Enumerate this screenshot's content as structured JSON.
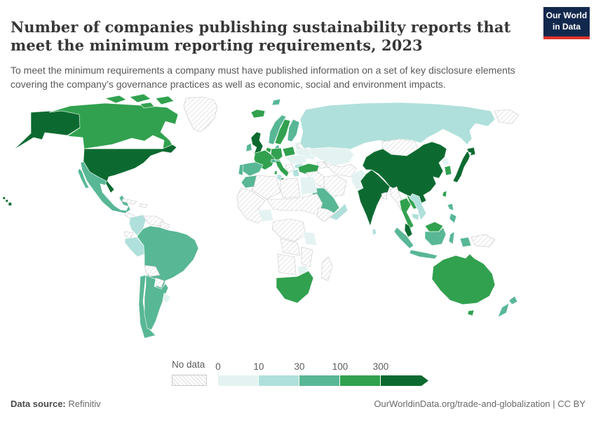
{
  "header": {
    "title": "Number of companies publishing sustainability reports that meet the minimum reporting requirements, 2023",
    "subtitle": "To meet the minimum requirements a company must have published information on a set of key disclosure elements covering the company’s governance practices as well as economic, social and environment impacts.",
    "logo_line1": "Our World",
    "logo_line2": "in Data",
    "logo_bg": "#12294d",
    "logo_red": "#e2342b"
  },
  "legend": {
    "no_data_label": "No data",
    "bins": [
      {
        "label": "0",
        "bin": "b0"
      },
      {
        "label": "10",
        "bin": "b1"
      },
      {
        "label": "30",
        "bin": "b2"
      },
      {
        "label": "100",
        "bin": "b3"
      },
      {
        "label": "300",
        "bin": "b4"
      }
    ]
  },
  "footer": {
    "source_label": "Data source:",
    "source_value": " Refinitiv",
    "url": "OurWorldinData.org/trade-and-globalization",
    "separator": " | ",
    "license": "CC BY"
  },
  "map": {
    "bin_colors": {
      "b0": "#e4f3f1",
      "b1": "#b0e0db",
      "b2": "#58b795",
      "b3": "#31a14f",
      "b4": "#0c6a30"
    },
    "bin_ranges": {
      "b0": "0-10",
      "b1": "10-30",
      "b2": "30-100",
      "b3": "100-300",
      "b4": "300+",
      "nodata": "No data"
    },
    "countries": {
      "usa": {
        "label": "United States",
        "bin": "b4"
      },
      "canada": {
        "label": "Canada",
        "bin": "b3"
      },
      "greenland": {
        "label": "Greenland",
        "bin": "nodata"
      },
      "mexico": {
        "label": "Mexico",
        "bin": "b2"
      },
      "central_america": {
        "label": "Central America",
        "bin": "nodata"
      },
      "cuba": {
        "label": "Cuba",
        "bin": "nodata"
      },
      "hispaniola": {
        "label": "Hispaniola",
        "bin": "nodata"
      },
      "colombia": {
        "label": "Colombia",
        "bin": "b1"
      },
      "venezuela": {
        "label": "Venezuela",
        "bin": "nodata"
      },
      "guyanas": {
        "label": "Guyanas",
        "bin": "nodata"
      },
      "ecuador": {
        "label": "Ecuador",
        "bin": "nodata"
      },
      "peru": {
        "label": "Peru",
        "bin": "b1"
      },
      "brazil": {
        "label": "Brazil",
        "bin": "b2"
      },
      "bolivia": {
        "label": "Bolivia",
        "bin": "nodata"
      },
      "paraguay": {
        "label": "Paraguay",
        "bin": "nodata"
      },
      "chile": {
        "label": "Chile",
        "bin": "b2"
      },
      "argentina": {
        "label": "Argentina",
        "bin": "b2"
      },
      "uruguay": {
        "label": "Uruguay",
        "bin": "b0"
      },
      "iceland": {
        "label": "Iceland",
        "bin": "b3"
      },
      "uk": {
        "label": "United Kingdom",
        "bin": "b4"
      },
      "ireland": {
        "label": "Ireland",
        "bin": "b2"
      },
      "norway": {
        "label": "Norway",
        "bin": "b2"
      },
      "sweden": {
        "label": "Sweden",
        "bin": "b3"
      },
      "finland": {
        "label": "Finland",
        "bin": "b2"
      },
      "denmark": {
        "label": "Denmark",
        "bin": "b2"
      },
      "baltics": {
        "label": "Baltic states",
        "bin": "b0"
      },
      "poland": {
        "label": "Poland",
        "bin": "b3"
      },
      "germany": {
        "label": "Germany",
        "bin": "b3"
      },
      "benelux": {
        "label": "Benelux",
        "bin": "b3"
      },
      "france": {
        "label": "France",
        "bin": "b3"
      },
      "spain": {
        "label": "Spain",
        "bin": "b2"
      },
      "portugal": {
        "label": "Portugal",
        "bin": "b2"
      },
      "italy": {
        "label": "Italy",
        "bin": "b3"
      },
      "swiss_austria": {
        "label": "Switzerland and Austria",
        "bin": "b2"
      },
      "east_europe": {
        "label": "Eastern Europe",
        "bin": "b0"
      },
      "ukraine": {
        "label": "Ukraine",
        "bin": "b0"
      },
      "belarus": {
        "label": "Belarus",
        "bin": "nodata"
      },
      "balkans": {
        "label": "Balkans",
        "bin": "nodata"
      },
      "greece": {
        "label": "Greece",
        "bin": "b1"
      },
      "bulgaria": {
        "label": "Bulgaria",
        "bin": "b1"
      },
      "turkey": {
        "label": "Turkey",
        "bin": "b3"
      },
      "svalbard": {
        "label": "Svalbard",
        "bin": "b2"
      },
      "russia": {
        "label": "Russia",
        "bin": "b1"
      },
      "chukotka": {
        "label": "Chukotka",
        "bin": "nodata"
      },
      "kazakhstan": {
        "label": "Kazakhstan",
        "bin": "b0"
      },
      "central_asia": {
        "label": "Central Asia",
        "bin": "nodata"
      },
      "mongolia": {
        "label": "Mongolia",
        "bin": "nodata"
      },
      "caucasus": {
        "label": "Caucasus",
        "bin": "nodata"
      },
      "china": {
        "label": "China",
        "bin": "b4"
      },
      "north_korea": {
        "label": "North Korea",
        "bin": "b0"
      },
      "south_korea": {
        "label": "South Korea",
        "bin": "b3"
      },
      "japan": {
        "label": "Japan",
        "bin": "b4"
      },
      "taiwan": {
        "label": "Taiwan",
        "bin": "b3"
      },
      "philippines": {
        "label": "Philippines",
        "bin": "b2"
      },
      "pakistan": {
        "label": "Pakistan",
        "bin": "b0"
      },
      "india": {
        "label": "India",
        "bin": "b4"
      },
      "sri_lanka": {
        "label": "Sri Lanka",
        "bin": "b1"
      },
      "bangladesh": {
        "label": "Bangladesh",
        "bin": "nodata"
      },
      "myanmar": {
        "label": "Myanmar",
        "bin": "nodata"
      },
      "thailand": {
        "label": "Thailand",
        "bin": "b3"
      },
      "laos": {
        "label": "Laos",
        "bin": "b3"
      },
      "vietnam": {
        "label": "Vietnam",
        "bin": "b1"
      },
      "cambodia": {
        "label": "Cambodia",
        "bin": "b1"
      },
      "malaysia": {
        "label": "Malaysia",
        "bin": "b4"
      },
      "malaysia_borneo": {
        "label": "Malaysia (Borneo)",
        "bin": "b3"
      },
      "indonesia": {
        "label": "Indonesia",
        "bin": "b2"
      },
      "new_guinea": {
        "label": "Papua New Guinea",
        "bin": "nodata"
      },
      "australia": {
        "label": "Australia",
        "bin": "b3"
      },
      "new_zealand": {
        "label": "New Zealand",
        "bin": "b2"
      },
      "morocco": {
        "label": "Morocco",
        "bin": "b2"
      },
      "algeria": {
        "label": "Algeria",
        "bin": "nodata"
      },
      "tunisia": {
        "label": "Tunisia",
        "bin": "b1"
      },
      "libya": {
        "label": "Libya",
        "bin": "nodata"
      },
      "egypt": {
        "label": "Egypt",
        "bin": "b0"
      },
      "west_africa": {
        "label": "West Africa",
        "bin": "nodata"
      },
      "nigeria": {
        "label": "Nigeria",
        "bin": "b0"
      },
      "sahel_sudan": {
        "label": "Sahel and Sudan",
        "bin": "nodata"
      },
      "horn": {
        "label": "Horn of Africa",
        "bin": "nodata"
      },
      "central_africa": {
        "label": "Central Africa",
        "bin": "nodata"
      },
      "kenya_tz": {
        "label": "Kenya and Tanzania",
        "bin": "b0"
      },
      "angola_zambia": {
        "label": "Angola and Zambia",
        "bin": "nodata"
      },
      "mozambique": {
        "label": "Mozambique",
        "bin": "nodata"
      },
      "zimbabwe": {
        "label": "Zimbabwe",
        "bin": "b0"
      },
      "namibia_botswana": {
        "label": "Namibia and Botswana",
        "bin": "nodata"
      },
      "south_africa": {
        "label": "South Africa",
        "bin": "b3"
      },
      "madagascar": {
        "label": "Madagascar",
        "bin": "nodata"
      },
      "iraq_syria": {
        "label": "Iraq and Syria",
        "bin": "nodata"
      },
      "iran": {
        "label": "Iran",
        "bin": "nodata"
      },
      "saudi": {
        "label": "Saudi Arabia",
        "bin": "b2"
      },
      "yemen_oman": {
        "label": "Yemen and Oman",
        "bin": "b1"
      }
    }
  },
  "chart_data": {
    "type": "heatmap",
    "subtype": "choropleth-world-map",
    "title": "Number of companies publishing sustainability reports that meet the minimum reporting requirements, 2023",
    "unit": "companies",
    "year": 2023,
    "bin_thresholds": [
      0,
      10,
      30,
      100,
      300
    ],
    "bin_labels": [
      "0-10",
      "10-30",
      "30-100",
      "100-300",
      "300+",
      "No data"
    ],
    "legend_position": "bottom-center",
    "values_by_country": {
      "United States": "300+",
      "United Kingdom": "300+",
      "China": "300+",
      "India": "300+",
      "Japan": "300+",
      "Malaysia": "300+",
      "Canada": "100-300",
      "Sweden": "100-300",
      "France": "100-300",
      "Germany": "100-300",
      "Poland": "100-300",
      "Italy": "100-300",
      "Turkey": "100-300",
      "South Korea": "100-300",
      "Thailand": "100-300",
      "Taiwan": "100-300",
      "Australia": "100-300",
      "South Africa": "100-300",
      "Iceland": "100-300",
      "Mexico": "30-100",
      "Brazil": "30-100",
      "Chile": "30-100",
      "Argentina": "30-100",
      "Ireland": "30-100",
      "Norway": "30-100",
      "Finland": "30-100",
      "Spain": "30-100",
      "Portugal": "30-100",
      "Morocco": "30-100",
      "Saudi Arabia": "30-100",
      "Indonesia": "30-100",
      "Philippines": "30-100",
      "New Zealand": "30-100",
      "Russia": "10-30",
      "Colombia": "10-30",
      "Peru": "10-30",
      "Greece": "10-30",
      "Vietnam": "10-30",
      "Sri Lanka": "10-30",
      "Kazakhstan": "0-10",
      "Pakistan": "0-10",
      "Egypt": "0-10",
      "Nigeria": "0-10",
      "Ukraine": "0-10",
      "Uruguay": "0-10",
      "Kenya": "0-10",
      "Zimbabwe": "0-10",
      "Greenland": "No data",
      "Mongolia": "No data",
      "Iran": "No data",
      "Algeria": "No data",
      "Libya": "No data",
      "Venezuela": "No data",
      "Bolivia": "No data",
      "Paraguay": "No data",
      "Belarus": "No data",
      "Myanmar": "No data",
      "Madagascar": "No data",
      "Papua New Guinea": "No data"
    }
  }
}
